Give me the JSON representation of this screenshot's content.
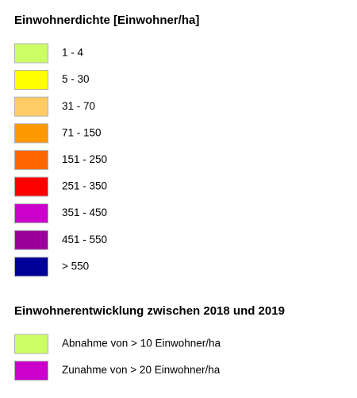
{
  "sections": [
    {
      "title": "Einwohnerdichte [Einwohner/ha]",
      "items": [
        {
          "label": "1 - 4",
          "color": "#ccff66"
        },
        {
          "label": "5 - 30",
          "color": "#ffff00"
        },
        {
          "label": "31 - 70",
          "color": "#ffcc66"
        },
        {
          "label": "71 - 150",
          "color": "#ff9900"
        },
        {
          "label": "151 - 250",
          "color": "#ff6600"
        },
        {
          "label": "251 - 350",
          "color": "#ff0000"
        },
        {
          "label": "351 - 450",
          "color": "#cc00cc"
        },
        {
          "label": "451 - 550",
          "color": "#990099"
        },
        {
          "label": "> 550",
          "color": "#000099"
        }
      ]
    },
    {
      "title": "Einwohnerentwicklung zwischen 2018 und 2019",
      "items": [
        {
          "label": "Abnahme von > 10 Einwohner/ha",
          "color": "#ccff66"
        },
        {
          "label": "Zunahme von > 20 Einwohner/ha",
          "color": "#cc00cc"
        }
      ]
    }
  ]
}
